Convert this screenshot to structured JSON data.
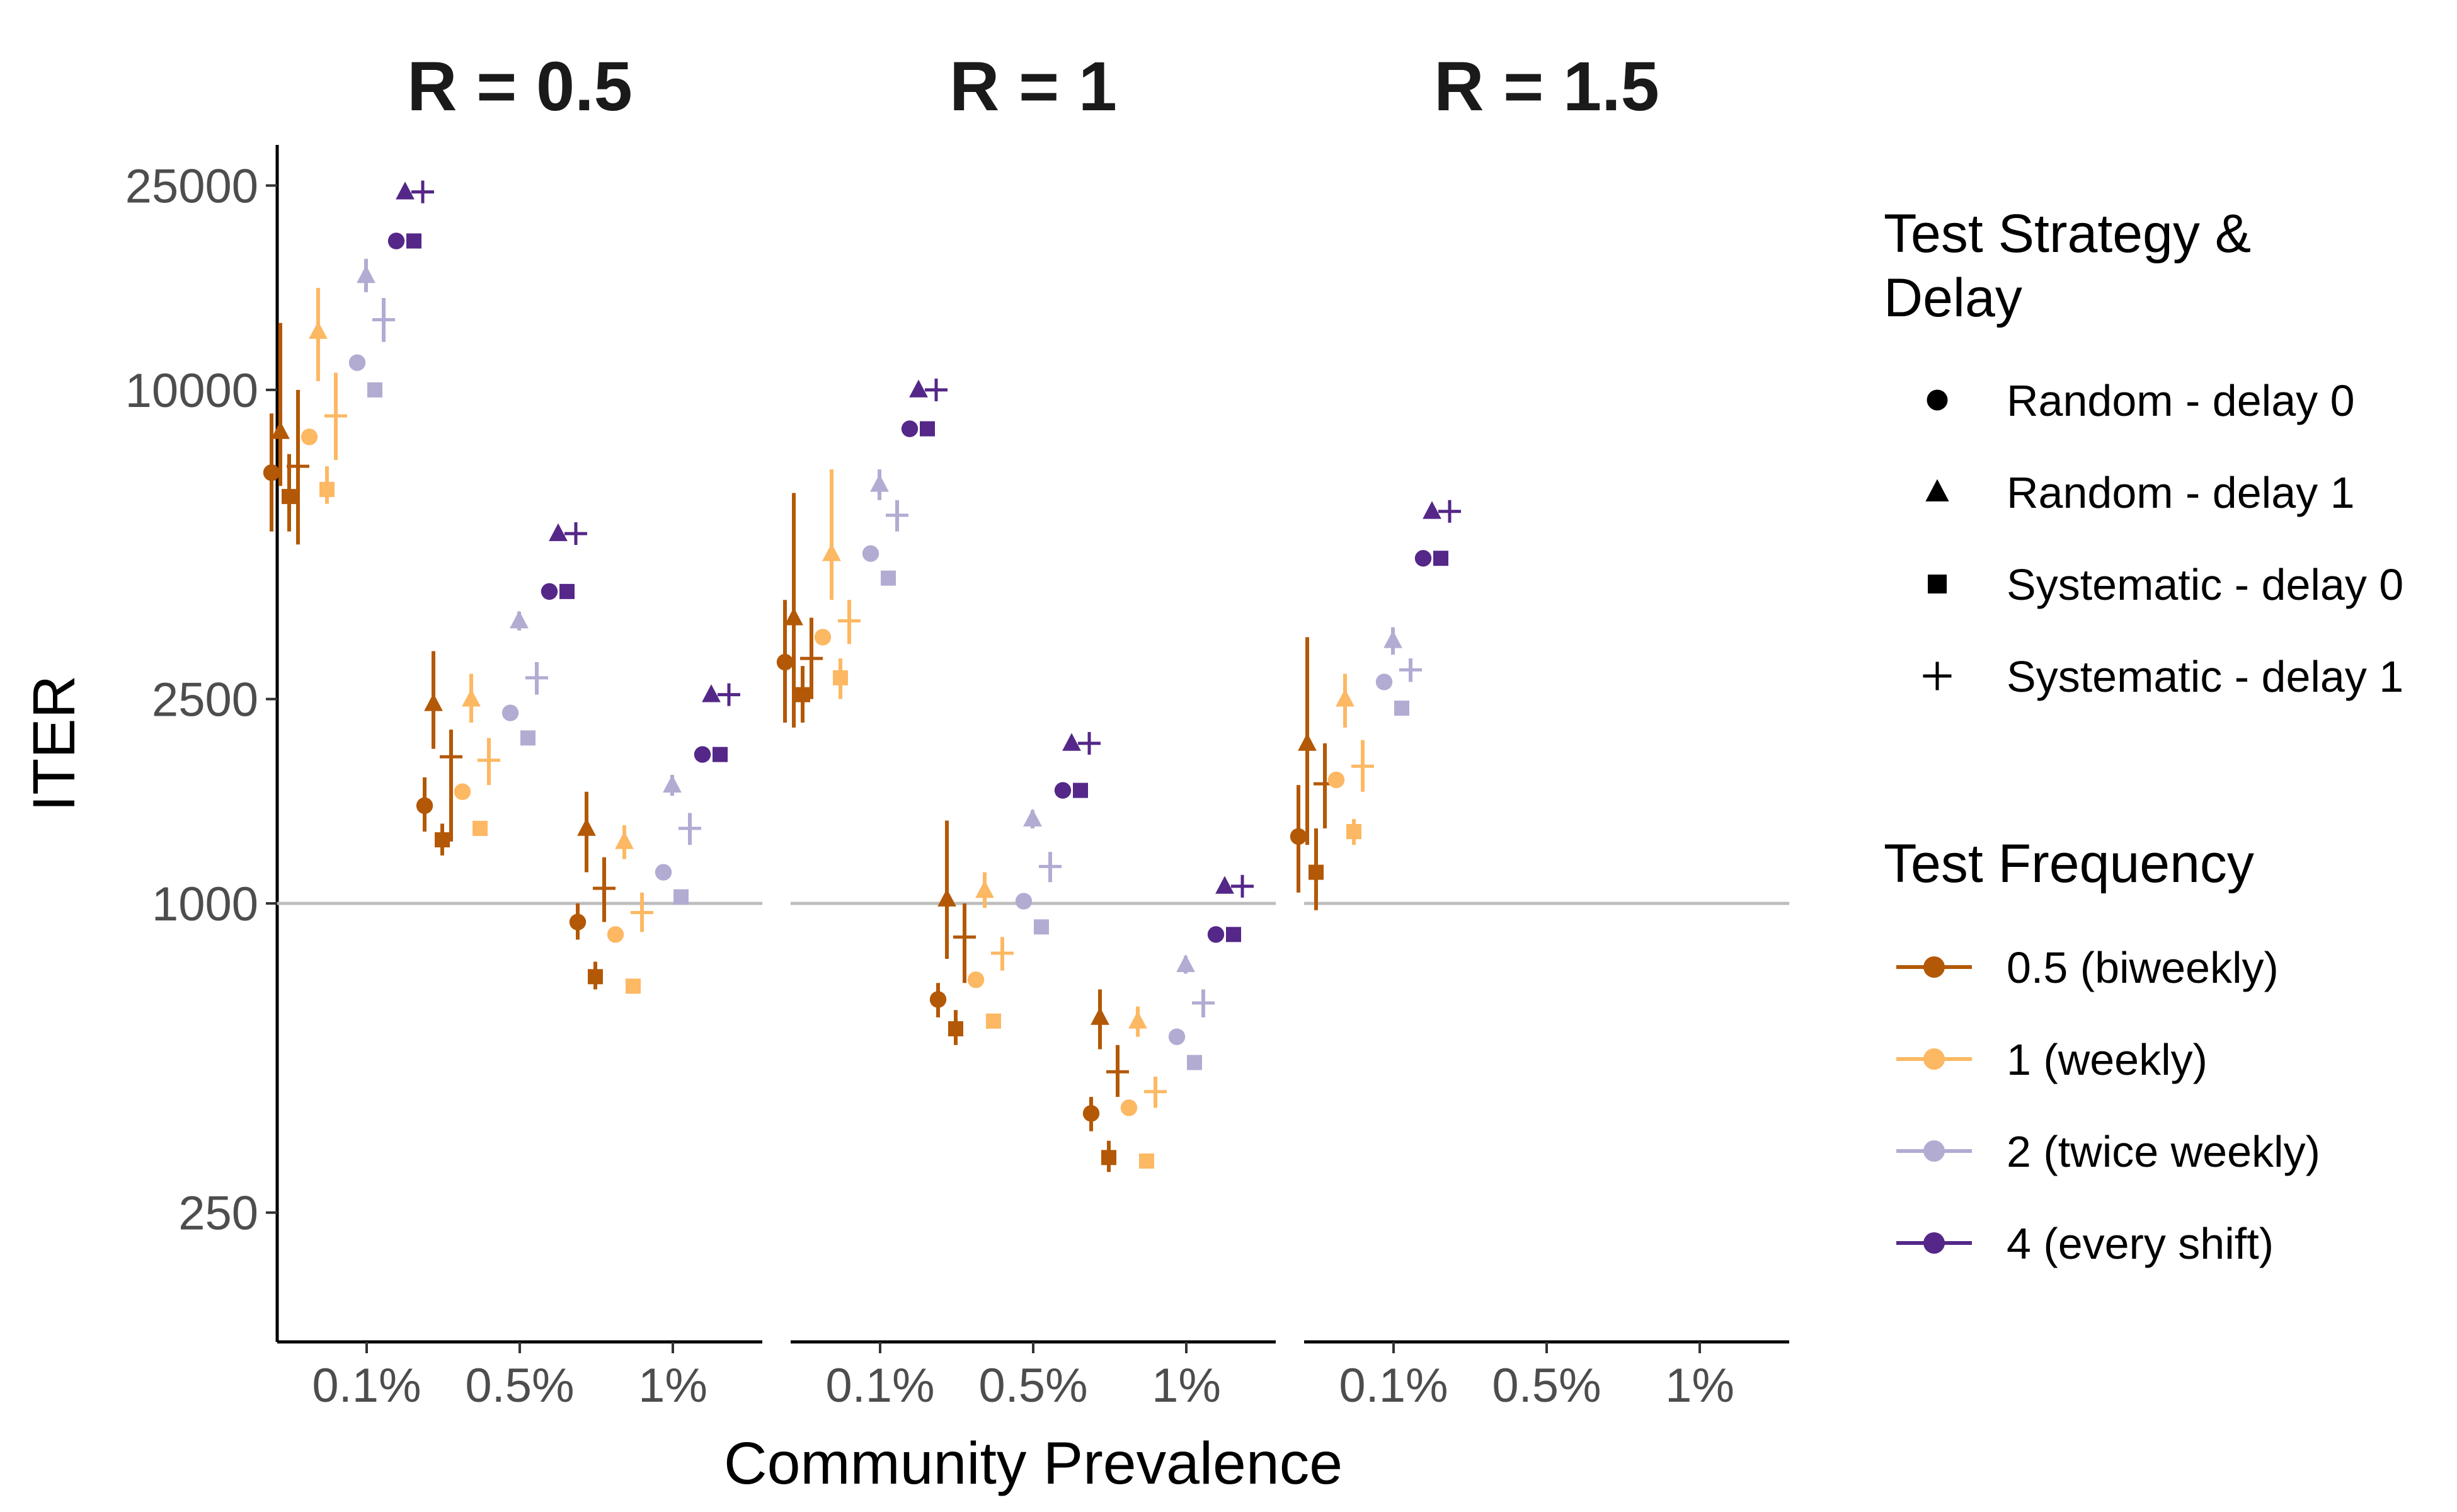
{
  "chart_data": {
    "type": "scatter",
    "ylabel": "ITER",
    "xlabel": "Community Prevalence",
    "y_scale": "log",
    "ylim": [
      140,
      30000
    ],
    "y_ticks": [
      {
        "value": 250,
        "label": "250"
      },
      {
        "value": 1000,
        "label": "1000"
      },
      {
        "value": 2500,
        "label": "2500"
      },
      {
        "value": 10000,
        "label": "10000"
      },
      {
        "value": 25000,
        "label": "25000"
      }
    ],
    "reference_line": 1000,
    "categories": [
      "0.1%",
      "0.5%",
      "1%"
    ],
    "legend_strategy": {
      "title": "Test Strategy & Delay",
      "title_lines": [
        "Test Strategy &",
        "Delay"
      ],
      "items": [
        {
          "label": "Random - delay 0",
          "shape": "circle"
        },
        {
          "label": "Random - delay 1",
          "shape": "triangle"
        },
        {
          "label": "Systematic - delay 0",
          "shape": "square"
        },
        {
          "label": "Systematic - delay 1",
          "shape": "plus"
        }
      ]
    },
    "legend_frequency": {
      "title": "Test Frequency",
      "items": [
        {
          "label": "0.5 (biweekly)",
          "color": "#b35806"
        },
        {
          "label": "1 (weekly)",
          "color": "#fdb863"
        },
        {
          "label": "2 (twice weekly)",
          "color": "#b2abd2"
        },
        {
          "label": "4 (every shift)",
          "color": "#542788"
        }
      ]
    },
    "facets": [
      {
        "title": "R = 0.5",
        "points": [
          {
            "prev": "0.1%",
            "freq": 0,
            "strategy": 0,
            "y": 6900,
            "lo": 5300,
            "hi": 9000
          },
          {
            "prev": "0.1%",
            "freq": 0,
            "strategy": 1,
            "y": 8300,
            "lo": 6500,
            "hi": 13500
          },
          {
            "prev": "0.1%",
            "freq": 0,
            "strategy": 2,
            "y": 6200,
            "lo": 5300,
            "hi": 7500
          },
          {
            "prev": "0.1%",
            "freq": 0,
            "strategy": 3,
            "y": 7100,
            "lo": 5000,
            "hi": 10000
          },
          {
            "prev": "0.1%",
            "freq": 1,
            "strategy": 0,
            "y": 8100
          },
          {
            "prev": "0.1%",
            "freq": 1,
            "strategy": 1,
            "y": 13000,
            "lo": 10400,
            "hi": 15800
          },
          {
            "prev": "0.1%",
            "freq": 1,
            "strategy": 2,
            "y": 6400,
            "lo": 6000,
            "hi": 7100
          },
          {
            "prev": "0.1%",
            "freq": 1,
            "strategy": 3,
            "y": 8900,
            "lo": 7300,
            "hi": 10800
          },
          {
            "prev": "0.1%",
            "freq": 2,
            "strategy": 0,
            "y": 11300
          },
          {
            "prev": "0.1%",
            "freq": 2,
            "strategy": 1,
            "y": 16700,
            "lo": 15500,
            "hi": 18000
          },
          {
            "prev": "0.1%",
            "freq": 2,
            "strategy": 2,
            "y": 10000
          },
          {
            "prev": "0.1%",
            "freq": 2,
            "strategy": 3,
            "y": 13700,
            "lo": 12400,
            "hi": 15100
          },
          {
            "prev": "0.1%",
            "freq": 3,
            "strategy": 0,
            "y": 19500
          },
          {
            "prev": "0.1%",
            "freq": 3,
            "strategy": 1,
            "y": 24300
          },
          {
            "prev": "0.1%",
            "freq": 3,
            "strategy": 2,
            "y": 19500
          },
          {
            "prev": "0.1%",
            "freq": 3,
            "strategy": 3,
            "y": 24300
          },
          {
            "prev": "0.5%",
            "freq": 0,
            "strategy": 0,
            "y": 1550,
            "lo": 1380,
            "hi": 1760
          },
          {
            "prev": "0.5%",
            "freq": 0,
            "strategy": 1,
            "y": 2450,
            "lo": 2000,
            "hi": 3100
          },
          {
            "prev": "0.5%",
            "freq": 0,
            "strategy": 2,
            "y": 1330,
            "lo": 1240,
            "hi": 1430
          },
          {
            "prev": "0.5%",
            "freq": 0,
            "strategy": 3,
            "y": 1930,
            "lo": 1320,
            "hi": 2180
          },
          {
            "prev": "0.5%",
            "freq": 1,
            "strategy": 0,
            "y": 1650
          },
          {
            "prev": "0.5%",
            "freq": 1,
            "strategy": 1,
            "y": 2500,
            "lo": 2250,
            "hi": 2800
          },
          {
            "prev": "0.5%",
            "freq": 1,
            "strategy": 2,
            "y": 1400
          },
          {
            "prev": "0.5%",
            "freq": 1,
            "strategy": 3,
            "y": 1900,
            "lo": 1700,
            "hi": 2100
          },
          {
            "prev": "0.5%",
            "freq": 2,
            "strategy": 0,
            "y": 2350
          },
          {
            "prev": "0.5%",
            "freq": 2,
            "strategy": 1,
            "y": 3550,
            "lo": 3400,
            "hi": 3700
          },
          {
            "prev": "0.5%",
            "freq": 2,
            "strategy": 2,
            "y": 2100
          },
          {
            "prev": "0.5%",
            "freq": 2,
            "strategy": 3,
            "y": 2750,
            "lo": 2550,
            "hi": 2950
          },
          {
            "prev": "0.5%",
            "freq": 3,
            "strategy": 0,
            "y": 4050
          },
          {
            "prev": "0.5%",
            "freq": 3,
            "strategy": 1,
            "y": 5250
          },
          {
            "prev": "0.5%",
            "freq": 3,
            "strategy": 2,
            "y": 4050
          },
          {
            "prev": "0.5%",
            "freq": 3,
            "strategy": 3,
            "y": 5250
          },
          {
            "prev": "1%",
            "freq": 0,
            "strategy": 0,
            "y": 920,
            "lo": 850,
            "hi": 1000
          },
          {
            "prev": "1%",
            "freq": 0,
            "strategy": 1,
            "y": 1400,
            "lo": 1150,
            "hi": 1650
          },
          {
            "prev": "1%",
            "freq": 0,
            "strategy": 2,
            "y": 720,
            "lo": 680,
            "hi": 770
          },
          {
            "prev": "1%",
            "freq": 0,
            "strategy": 3,
            "y": 1070,
            "lo": 920,
            "hi": 1230
          },
          {
            "prev": "1%",
            "freq": 1,
            "strategy": 0,
            "y": 870
          },
          {
            "prev": "1%",
            "freq": 1,
            "strategy": 1,
            "y": 1320,
            "lo": 1220,
            "hi": 1420
          },
          {
            "prev": "1%",
            "freq": 1,
            "strategy": 2,
            "y": 690
          },
          {
            "prev": "1%",
            "freq": 1,
            "strategy": 3,
            "y": 960,
            "lo": 880,
            "hi": 1050
          },
          {
            "prev": "1%",
            "freq": 2,
            "strategy": 0,
            "y": 1150
          },
          {
            "prev": "1%",
            "freq": 2,
            "strategy": 1,
            "y": 1700,
            "lo": 1620,
            "hi": 1780
          },
          {
            "prev": "1%",
            "freq": 2,
            "strategy": 2,
            "y": 1030
          },
          {
            "prev": "1%",
            "freq": 2,
            "strategy": 3,
            "y": 1400,
            "lo": 1300,
            "hi": 1500
          },
          {
            "prev": "1%",
            "freq": 3,
            "strategy": 0,
            "y": 1950
          },
          {
            "prev": "1%",
            "freq": 3,
            "strategy": 1,
            "y": 2550
          },
          {
            "prev": "1%",
            "freq": 3,
            "strategy": 2,
            "y": 1950
          },
          {
            "prev": "1%",
            "freq": 3,
            "strategy": 3,
            "y": 2550
          }
        ]
      },
      {
        "title": "R = 1",
        "points": [
          {
            "prev": "0.1%",
            "freq": 0,
            "strategy": 0,
            "y": 2950,
            "lo": 2250,
            "hi": 3900
          },
          {
            "prev": "0.1%",
            "freq": 0,
            "strategy": 1,
            "y": 3600,
            "lo": 2200,
            "hi": 6300
          },
          {
            "prev": "0.1%",
            "freq": 0,
            "strategy": 2,
            "y": 2550,
            "lo": 2250,
            "hi": 2900
          },
          {
            "prev": "0.1%",
            "freq": 0,
            "strategy": 3,
            "y": 3000,
            "lo": 2500,
            "hi": 3600
          },
          {
            "prev": "0.1%",
            "freq": 1,
            "strategy": 0,
            "y": 3300
          },
          {
            "prev": "0.1%",
            "freq": 1,
            "strategy": 1,
            "y": 4800,
            "lo": 3900,
            "hi": 7000
          },
          {
            "prev": "0.1%",
            "freq": 1,
            "strategy": 2,
            "y": 2750,
            "lo": 2500,
            "hi": 3000
          },
          {
            "prev": "0.1%",
            "freq": 1,
            "strategy": 3,
            "y": 3550,
            "lo": 3200,
            "hi": 3900
          },
          {
            "prev": "0.1%",
            "freq": 2,
            "strategy": 0,
            "y": 4800
          },
          {
            "prev": "0.1%",
            "freq": 2,
            "strategy": 1,
            "y": 6550,
            "lo": 6100,
            "hi": 7000
          },
          {
            "prev": "0.1%",
            "freq": 2,
            "strategy": 2,
            "y": 4300
          },
          {
            "prev": "0.1%",
            "freq": 2,
            "strategy": 3,
            "y": 5700,
            "lo": 5300,
            "hi": 6100
          },
          {
            "prev": "0.1%",
            "freq": 3,
            "strategy": 0,
            "y": 8400
          },
          {
            "prev": "0.1%",
            "freq": 3,
            "strategy": 1,
            "y": 10000
          },
          {
            "prev": "0.1%",
            "freq": 3,
            "strategy": 2,
            "y": 8400
          },
          {
            "prev": "0.1%",
            "freq": 3,
            "strategy": 3,
            "y": 10000
          },
          {
            "prev": "0.5%",
            "freq": 0,
            "strategy": 0,
            "y": 650,
            "lo": 600,
            "hi": 700
          },
          {
            "prev": "0.5%",
            "freq": 0,
            "strategy": 1,
            "y": 1020,
            "lo": 780,
            "hi": 1450
          },
          {
            "prev": "0.5%",
            "freq": 0,
            "strategy": 2,
            "y": 570,
            "lo": 530,
            "hi": 620
          },
          {
            "prev": "0.5%",
            "freq": 0,
            "strategy": 3,
            "y": 860,
            "lo": 700,
            "hi": 1000
          },
          {
            "prev": "0.5%",
            "freq": 1,
            "strategy": 0,
            "y": 710
          },
          {
            "prev": "0.5%",
            "freq": 1,
            "strategy": 1,
            "y": 1060,
            "lo": 980,
            "hi": 1150
          },
          {
            "prev": "0.5%",
            "freq": 1,
            "strategy": 2,
            "y": 590
          },
          {
            "prev": "0.5%",
            "freq": 1,
            "strategy": 3,
            "y": 800,
            "lo": 740,
            "hi": 860
          },
          {
            "prev": "0.5%",
            "freq": 2,
            "strategy": 0,
            "y": 1010
          },
          {
            "prev": "0.5%",
            "freq": 2,
            "strategy": 1,
            "y": 1460,
            "lo": 1400,
            "hi": 1520
          },
          {
            "prev": "0.5%",
            "freq": 2,
            "strategy": 2,
            "y": 900
          },
          {
            "prev": "0.5%",
            "freq": 2,
            "strategy": 3,
            "y": 1180,
            "lo": 1100,
            "hi": 1260
          },
          {
            "prev": "0.5%",
            "freq": 3,
            "strategy": 0,
            "y": 1660
          },
          {
            "prev": "0.5%",
            "freq": 3,
            "strategy": 1,
            "y": 2050
          },
          {
            "prev": "0.5%",
            "freq": 3,
            "strategy": 2,
            "y": 1660
          },
          {
            "prev": "0.5%",
            "freq": 3,
            "strategy": 3,
            "y": 2050
          },
          {
            "prev": "1%",
            "freq": 0,
            "strategy": 0,
            "y": 390,
            "lo": 360,
            "hi": 420
          },
          {
            "prev": "1%",
            "freq": 0,
            "strategy": 1,
            "y": 600,
            "lo": 520,
            "hi": 680
          },
          {
            "prev": "1%",
            "freq": 0,
            "strategy": 2,
            "y": 320,
            "lo": 300,
            "hi": 345
          },
          {
            "prev": "1%",
            "freq": 0,
            "strategy": 3,
            "y": 470,
            "lo": 420,
            "hi": 530
          },
          {
            "prev": "1%",
            "freq": 1,
            "strategy": 0,
            "y": 400
          },
          {
            "prev": "1%",
            "freq": 1,
            "strategy": 1,
            "y": 590,
            "lo": 550,
            "hi": 630
          },
          {
            "prev": "1%",
            "freq": 1,
            "strategy": 2,
            "y": 315
          },
          {
            "prev": "1%",
            "freq": 1,
            "strategy": 3,
            "y": 430,
            "lo": 400,
            "hi": 460
          },
          {
            "prev": "1%",
            "freq": 2,
            "strategy": 0,
            "y": 550
          },
          {
            "prev": "1%",
            "freq": 2,
            "strategy": 1,
            "y": 760,
            "lo": 730,
            "hi": 790
          },
          {
            "prev": "1%",
            "freq": 2,
            "strategy": 2,
            "y": 490
          },
          {
            "prev": "1%",
            "freq": 2,
            "strategy": 3,
            "y": 640,
            "lo": 600,
            "hi": 680
          },
          {
            "prev": "1%",
            "freq": 3,
            "strategy": 0,
            "y": 870
          },
          {
            "prev": "1%",
            "freq": 3,
            "strategy": 1,
            "y": 1080
          },
          {
            "prev": "1%",
            "freq": 3,
            "strategy": 2,
            "y": 870
          },
          {
            "prev": "1%",
            "freq": 3,
            "strategy": 3,
            "y": 1080
          }
        ]
      },
      {
        "title": "R = 1.5",
        "points": [
          {
            "prev": "0.1%",
            "freq": 0,
            "strategy": 0,
            "y": 1350,
            "lo": 1050,
            "hi": 1700
          },
          {
            "prev": "0.1%",
            "freq": 0,
            "strategy": 1,
            "y": 2050,
            "lo": 1300,
            "hi": 3300
          },
          {
            "prev": "0.1%",
            "freq": 0,
            "strategy": 2,
            "y": 1150,
            "lo": 970,
            "hi": 1400
          },
          {
            "prev": "0.1%",
            "freq": 0,
            "strategy": 3,
            "y": 1710,
            "lo": 1400,
            "hi": 2050
          },
          {
            "prev": "0.1%",
            "freq": 1,
            "strategy": 0,
            "y": 1740
          },
          {
            "prev": "0.1%",
            "freq": 1,
            "strategy": 1,
            "y": 2500,
            "lo": 2200,
            "hi": 2800
          },
          {
            "prev": "0.1%",
            "freq": 1,
            "strategy": 2,
            "y": 1380,
            "lo": 1300,
            "hi": 1460
          },
          {
            "prev": "0.1%",
            "freq": 1,
            "strategy": 3,
            "y": 1850,
            "lo": 1650,
            "hi": 2080
          },
          {
            "prev": "0.1%",
            "freq": 2,
            "strategy": 0,
            "y": 2700
          },
          {
            "prev": "0.1%",
            "freq": 2,
            "strategy": 1,
            "y": 3250,
            "lo": 3050,
            "hi": 3450
          },
          {
            "prev": "0.1%",
            "freq": 2,
            "strategy": 2,
            "y": 2400
          },
          {
            "prev": "0.1%",
            "freq": 2,
            "strategy": 3,
            "y": 2850,
            "lo": 2700,
            "hi": 3000
          },
          {
            "prev": "0.1%",
            "freq": 3,
            "strategy": 0,
            "y": 4700
          },
          {
            "prev": "0.1%",
            "freq": 3,
            "strategy": 1,
            "y": 5800
          },
          {
            "prev": "0.1%",
            "freq": 3,
            "strategy": 2,
            "y": 4700
          },
          {
            "prev": "0.1%",
            "freq": 3,
            "strategy": 3,
            "y": 5800
          }
        ]
      }
    ]
  }
}
